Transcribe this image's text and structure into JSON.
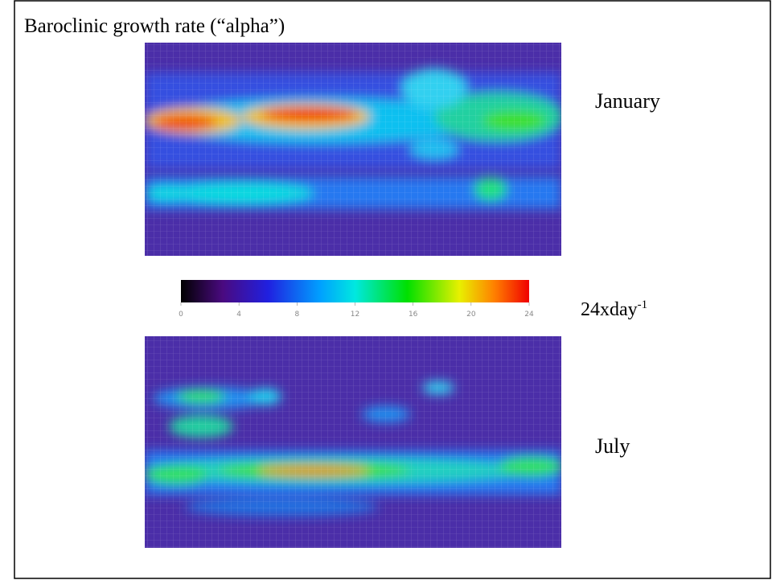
{
  "header": {
    "title": "Baroclinic growth rate (“alpha”)"
  },
  "maps": [
    {
      "label": "January"
    },
    {
      "label": "July"
    }
  ],
  "colorbar": {
    "ticks": [
      0,
      4,
      8,
      12,
      16,
      20,
      24
    ],
    "unit": "24xday",
    "unit_exponent": "-1"
  }
}
